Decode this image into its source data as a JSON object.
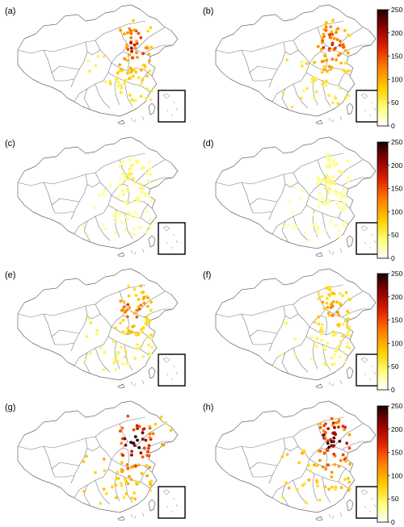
{
  "figure": {
    "panels": [
      {
        "label": "(a)",
        "intensity": 0.55,
        "west_spread": 0.15
      },
      {
        "label": "(b)",
        "intensity": 0.5,
        "west_spread": 0.1
      },
      {
        "label": "(c)",
        "intensity": 0.12,
        "west_spread": 0.05
      },
      {
        "label": "(d)",
        "intensity": 0.1,
        "west_spread": 0.05
      },
      {
        "label": "(e)",
        "intensity": 0.45,
        "west_spread": 0.3
      },
      {
        "label": "(f)",
        "intensity": 0.35,
        "west_spread": 0.1
      },
      {
        "label": "(g)",
        "intensity": 0.85,
        "west_spread": 0.6
      },
      {
        "label": "(h)",
        "intensity": 0.8,
        "west_spread": 0.2
      }
    ],
    "colorbar": {
      "ticks": [
        "0",
        "50",
        "100",
        "150",
        "200",
        "250"
      ],
      "range": [
        0,
        250
      ],
      "colors": [
        "#ffffff",
        "#ffff80",
        "#ffd000",
        "#ff8000",
        "#e02000",
        "#8b0000",
        "#1a0000"
      ]
    }
  }
}
